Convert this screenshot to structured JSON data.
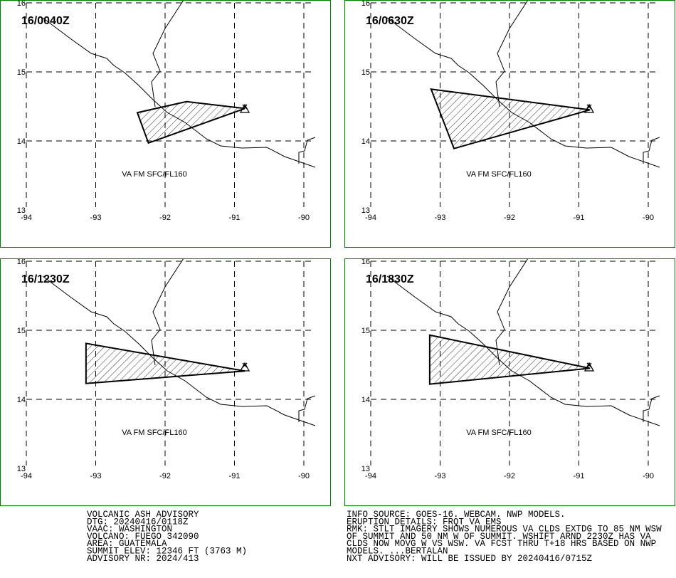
{
  "panels": [
    {
      "time": "16/0040Z",
      "label": "VA FM SFC/FL160",
      "polygon": [
        [
          -92.4,
          14.41
        ],
        [
          -91.69,
          14.57
        ],
        [
          -90.85,
          14.47
        ],
        [
          -92.24,
          13.97
        ]
      ]
    },
    {
      "time": "16/0630Z",
      "label": "VA FM SFC/FL160",
      "polygon": [
        [
          -93.13,
          14.75
        ],
        [
          -90.84,
          14.45
        ],
        [
          -92.8,
          13.89
        ]
      ]
    },
    {
      "time": "16/1230Z",
      "label": "VA FM SFC/FL160",
      "polygon": [
        [
          -93.14,
          14.81
        ],
        [
          -90.85,
          14.41
        ],
        [
          -93.14,
          14.23
        ]
      ]
    },
    {
      "time": "16/1830Z",
      "label": "VA FM SFC/FL160",
      "polygon": [
        [
          -93.15,
          14.93
        ],
        [
          -90.84,
          14.45
        ],
        [
          -93.15,
          14.22
        ]
      ]
    }
  ],
  "lon_ticks": [
    -94,
    -93,
    -92,
    -91,
    -90
  ],
  "lat_ticks": [
    13,
    14,
    15,
    16
  ],
  "advisory_left": [
    "VOLCANIC ASH ADVISORY",
    "DTG: 20240416/0118Z",
    "VAAC: WASHINGTON",
    "VOLCANO: FUEGO 342090",
    "AREA: GUATEMALA",
    "SUMMIT ELEV: 12346 FT (3763 M)",
    "ADVISORY NR: 2024/413"
  ],
  "advisory_right": [
    "INFO SOURCE: GOES-16. WEBCAM. NWP MODELS.",
    "ERUPTION DETAILS: FRQT VA EMS",
    "RMK: STLT IMAGERY SHOWS NUMEROUS VA CLDS EXTDG TO 85 NM WSW",
    "OF SUMMIT AND 50 NM W OF SUMMIT. WSHIFT ARND 2230Z HAS VA",
    "CLDS NOW MOVG W VS WSW. VA FCST THRU T+18 HRS BASED ON NWP",
    "MODELS. ...BERTALAN",
    "NXT ADVISORY: WILL BE ISSUED BY 20240416/0715Z"
  ]
}
